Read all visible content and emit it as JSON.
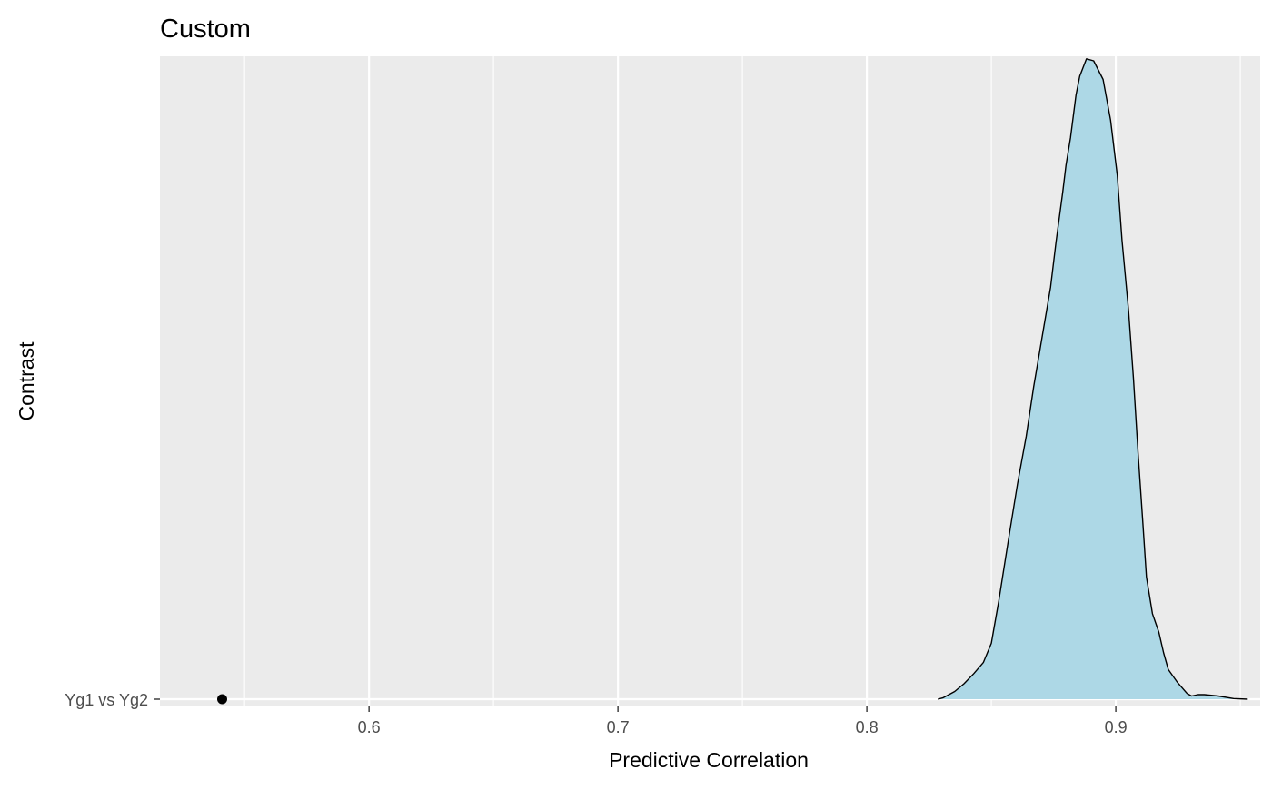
{
  "chart_data": {
    "type": "density",
    "title": "Custom",
    "xlabel": "Predictive Correlation",
    "ylabel": "Contrast",
    "xlim": [
      0.516,
      0.958
    ],
    "x_major_ticks": [
      0.6,
      0.7,
      0.8,
      0.9
    ],
    "x_tick_labels": [
      "0.6",
      "0.7",
      "0.8",
      "0.9"
    ],
    "x_minor_ticks": [
      0.55,
      0.65,
      0.75,
      0.85,
      0.95
    ],
    "categories": [
      "Yg1 vs Yg2"
    ],
    "grid": true,
    "background_color": "#EBEBEB",
    "grid_color": "#FFFFFF",
    "fill_color": "#ADD8E6",
    "outline_color": "#000000",
    "point_color": "#000000",
    "point": {
      "category": "Yg1 vs Yg2",
      "x": 0.541
    },
    "density": {
      "category": "Yg1 vs Yg2",
      "x": [
        0.8285,
        0.8305,
        0.8353,
        0.839,
        0.843,
        0.8468,
        0.85,
        0.853,
        0.8568,
        0.8605,
        0.864,
        0.867,
        0.8705,
        0.8738,
        0.876,
        0.8787,
        0.88,
        0.8818,
        0.884,
        0.8855,
        0.8882,
        0.8911,
        0.8949,
        0.8979,
        0.9006,
        0.9025,
        0.9051,
        0.9071,
        0.9089,
        0.9109,
        0.9123,
        0.9147,
        0.9173,
        0.9192,
        0.9211,
        0.9248,
        0.9286,
        0.9304,
        0.933,
        0.9356,
        0.9411,
        0.9473,
        0.953
      ],
      "density": [
        0.0,
        0.002,
        0.012,
        0.024,
        0.04,
        0.057,
        0.087,
        0.153,
        0.246,
        0.335,
        0.409,
        0.486,
        0.566,
        0.641,
        0.711,
        0.789,
        0.831,
        0.873,
        0.94,
        0.969,
        0.996,
        0.993,
        0.964,
        0.901,
        0.815,
        0.714,
        0.605,
        0.499,
        0.385,
        0.271,
        0.19,
        0.133,
        0.104,
        0.072,
        0.046,
        0.026,
        0.009,
        0.005,
        0.007,
        0.007,
        0.005,
        0.001,
        0.0
      ]
    }
  }
}
